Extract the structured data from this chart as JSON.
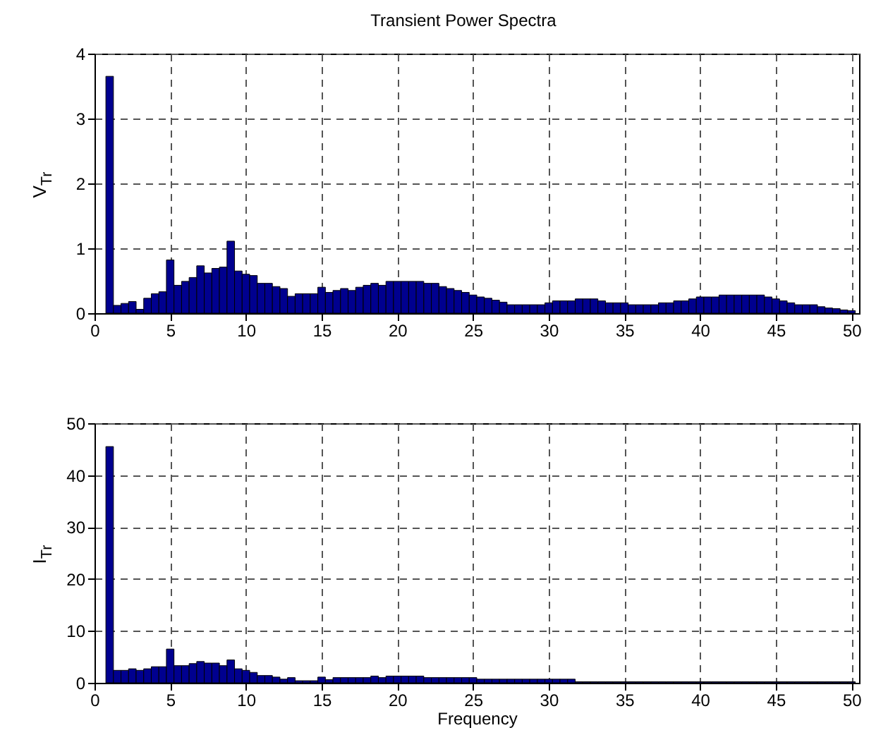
{
  "chart_data": [
    {
      "type": "bar",
      "title": "Transient Power Spectra",
      "ylabel": "V$_{Tr}$",
      "color": "#00008f",
      "grid": true,
      "line_style": "dashed",
      "x": [
        1,
        1.5,
        2,
        2.5,
        3,
        3.5,
        4,
        4.5,
        5,
        5.5,
        6,
        6.5,
        7,
        7.5,
        8,
        8.5,
        9,
        9.5,
        10,
        10.5,
        11,
        11.5,
        12,
        12.5,
        13,
        13.5,
        14,
        14.5,
        15,
        15.5,
        16,
        16.5,
        17,
        17.5,
        18,
        18.5,
        19,
        19.5,
        20,
        20.5,
        21,
        21.5,
        22,
        22.5,
        23,
        23.5,
        24,
        24.5,
        25,
        25.5,
        26,
        26.5,
        27,
        27.5,
        28,
        28.5,
        29,
        29.5,
        30,
        30.5,
        31,
        31.5,
        32,
        32.5,
        33,
        33.5,
        34,
        34.5,
        35,
        35.5,
        36,
        36.5,
        37,
        37.5,
        38,
        38.5,
        39,
        39.5,
        40,
        40.5,
        41,
        41.5,
        42,
        42.5,
        43,
        43.5,
        44,
        44.5,
        45,
        45.5,
        46,
        46.5,
        47,
        47.5,
        48,
        48.5,
        49,
        49.5,
        50
      ],
      "values": [
        3.65,
        0.12,
        0.15,
        0.18,
        0.06,
        0.23,
        0.3,
        0.33,
        0.82,
        0.43,
        0.49,
        0.55,
        0.73,
        0.62,
        0.69,
        0.71,
        1.11,
        0.65,
        0.6,
        0.58,
        0.46,
        0.46,
        0.41,
        0.38,
        0.26,
        0.3,
        0.3,
        0.3,
        0.4,
        0.32,
        0.35,
        0.38,
        0.35,
        0.4,
        0.43,
        0.46,
        0.43,
        0.49,
        0.49,
        0.49,
        0.49,
        0.49,
        0.46,
        0.46,
        0.41,
        0.38,
        0.35,
        0.32,
        0.28,
        0.25,
        0.23,
        0.2,
        0.17,
        0.13,
        0.13,
        0.13,
        0.13,
        0.13,
        0.16,
        0.19,
        0.19,
        0.19,
        0.22,
        0.22,
        0.22,
        0.19,
        0.16,
        0.16,
        0.16,
        0.13,
        0.13,
        0.13,
        0.13,
        0.16,
        0.16,
        0.19,
        0.19,
        0.22,
        0.25,
        0.25,
        0.25,
        0.28,
        0.28,
        0.28,
        0.28,
        0.28,
        0.28,
        0.25,
        0.22,
        0.19,
        0.16,
        0.13,
        0.13,
        0.13,
        0.1,
        0.08,
        0.07,
        0.05,
        0.04
      ],
      "xlim": [
        0,
        50.5
      ],
      "xticks": [
        0,
        5,
        10,
        15,
        20,
        25,
        30,
        35,
        40,
        45,
        50
      ],
      "ylim": [
        0,
        4
      ],
      "yticks": [
        0,
        1,
        2,
        3,
        4
      ]
    },
    {
      "type": "bar",
      "xlabel": "Frequency",
      "ylabel": "I$_{Tr}$",
      "color": "#00008f",
      "grid": true,
      "line_style": "dashed",
      "x": [
        1,
        1.5,
        2,
        2.5,
        3,
        3.5,
        4,
        4.5,
        5,
        5.5,
        6,
        6.5,
        7,
        7.5,
        8,
        8.5,
        9,
        9.5,
        10,
        10.5,
        11,
        11.5,
        12,
        12.5,
        13,
        13.5,
        14,
        14.5,
        15,
        15.5,
        16,
        16.5,
        17,
        17.5,
        18,
        18.5,
        19,
        19.5,
        20,
        20.5,
        21,
        21.5,
        22,
        22.5,
        23,
        23.5,
        24,
        24.5,
        25,
        25.5,
        26,
        26.5,
        27,
        27.5,
        28,
        28.5,
        29,
        29.5,
        30,
        30.5,
        31,
        31.5,
        32,
        32.5,
        33,
        33.5,
        34,
        34.5,
        35,
        35.5,
        36,
        36.5,
        37,
        37.5,
        38,
        38.5,
        39,
        39.5,
        40,
        40.5,
        41,
        41.5,
        42,
        42.5,
        43,
        43.5,
        44,
        44.5,
        45,
        45.5,
        46,
        46.5,
        47,
        47.5,
        48,
        48.5,
        49,
        49.5,
        50
      ],
      "values": [
        45.5,
        2.4,
        2.4,
        2.7,
        2.4,
        2.7,
        3.1,
        3.1,
        6.5,
        3.3,
        3.3,
        3.7,
        4.1,
        3.8,
        3.8,
        3.3,
        4.4,
        2.7,
        2.4,
        2.0,
        1.4,
        1.4,
        1.1,
        0.7,
        1.0,
        0.4,
        0.4,
        0.4,
        1.1,
        0.6,
        1.0,
        1.0,
        1.0,
        1.0,
        1.0,
        1.3,
        1.0,
        1.3,
        1.3,
        1.3,
        1.3,
        1.3,
        1.0,
        1.0,
        1.0,
        1.0,
        1.0,
        1.0,
        1.0,
        0.7,
        0.7,
        0.7,
        0.7,
        0.7,
        0.7,
        0.7,
        0.7,
        0.7,
        0.7,
        0.7,
        0.7,
        0.7,
        0.2,
        0.2,
        0.2,
        0.2,
        0.2,
        0.2,
        0.2,
        0.2,
        0.2,
        0.2,
        0.2,
        0.2,
        0.2,
        0.2,
        0.2,
        0.2,
        0.2,
        0.2,
        0.2,
        0.2,
        0.2,
        0.2,
        0.2,
        0.2,
        0.2,
        0.2,
        0.2,
        0.2,
        0.2,
        0.2,
        0.2,
        0.2,
        0.2,
        0.2,
        0.2,
        0.2,
        0.2
      ],
      "xlim": [
        0,
        50.5
      ],
      "xticks": [
        0,
        5,
        10,
        15,
        20,
        25,
        30,
        35,
        40,
        45,
        50
      ],
      "ylim": [
        0,
        50
      ],
      "yticks": [
        0,
        10,
        20,
        30,
        40,
        50
      ]
    }
  ]
}
